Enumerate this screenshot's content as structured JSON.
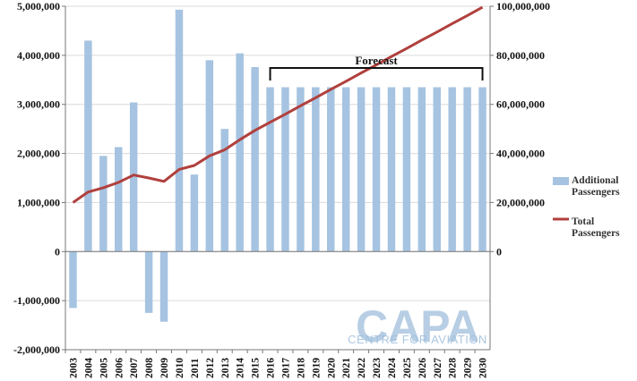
{
  "chart_data": {
    "type": "bar",
    "categories": [
      "2003",
      "2004",
      "2005",
      "2006",
      "2007",
      "2008",
      "2009",
      "2010",
      "2011",
      "2012",
      "2013",
      "2014",
      "2015",
      "2016",
      "2017",
      "2018",
      "2019",
      "2020",
      "2021",
      "2022",
      "2023",
      "2024",
      "2025",
      "2026",
      "2027",
      "2028",
      "2029",
      "2030"
    ],
    "series": [
      {
        "name": "Additional Passengers",
        "type": "bar",
        "axis": "left",
        "color": "#a6c3e1",
        "values": [
          -1150000,
          4300000,
          1950000,
          2130000,
          3040000,
          -1250000,
          -1430000,
          4930000,
          1570000,
          3900000,
          2500000,
          4040000,
          3760000,
          3350000,
          3350000,
          3350000,
          3350000,
          3350000,
          3350000,
          3350000,
          3350000,
          3350000,
          3350000,
          3350000,
          3350000,
          3350000,
          3350000,
          3350000
        ]
      },
      {
        "name": "Total Passengers",
        "type": "line",
        "axis": "right",
        "color": "#b0403d",
        "values": [
          20000000,
          24300000,
          26000000,
          28200000,
          31200000,
          30000000,
          28600000,
          33500000,
          35100000,
          39000000,
          41500000,
          45600000,
          49400000,
          52700000,
          56000000,
          59400000,
          62700000,
          66100000,
          69400000,
          72800000,
          76100000,
          79500000,
          82800000,
          86200000,
          89500000,
          92900000,
          96200000,
          99600000
        ]
      }
    ],
    "ylim": [
      -2000000,
      5000000
    ],
    "y2lim": [
      0,
      100000000
    ],
    "yticks": [
      -2000000,
      -1000000,
      0,
      1000000,
      2000000,
      3000000,
      4000000,
      5000000
    ],
    "yticklabels": [
      "-2,000,000",
      "-1,000,000",
      "0",
      "1,000,000",
      "2,000,000",
      "3,000,000",
      "4,000,000",
      "5,000,000"
    ],
    "y2ticks": [
      0,
      20000000,
      40000000,
      60000000,
      80000000,
      100000000
    ],
    "y2ticklabels": [
      "0",
      "20,000,000",
      "40,000,000",
      "60,000,000",
      "80,000,000",
      "100,000,000"
    ],
    "grid": true,
    "legend": {
      "position": "right",
      "entries": [
        {
          "line1": "Additional",
          "line2": "Passengers"
        },
        {
          "line1": "Total",
          "line2": "Passengers"
        }
      ]
    },
    "annotation": {
      "text": "Forecast",
      "from": "2016",
      "to": "2030"
    }
  },
  "watermark": {
    "big": "CAPA",
    "small": "CENTRE FOR AVIATION"
  }
}
